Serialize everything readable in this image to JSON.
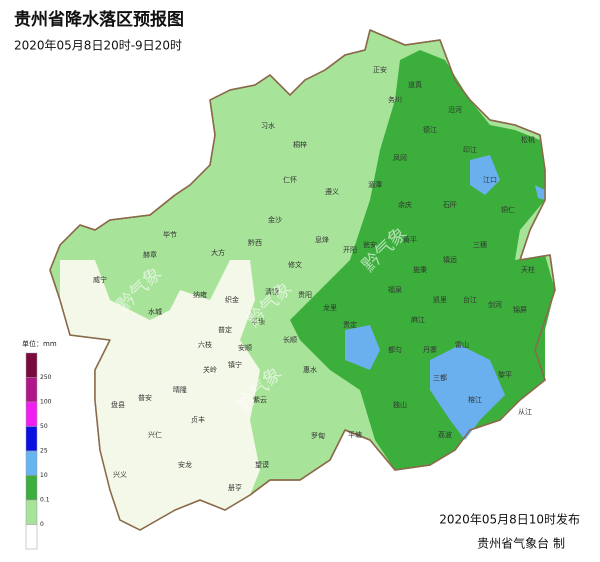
{
  "header": {
    "title": "贵州省降水落区预报图",
    "subtitle": "2020年05月8日20时-9日20时"
  },
  "legend": {
    "unit": "单位：mm",
    "labels": [
      "250",
      "100",
      "50",
      "25",
      "10",
      "0.1",
      "0"
    ]
  },
  "watermark": "黔气象",
  "cities": [
    "习水",
    "桐梓",
    "正安",
    "道真",
    "务川",
    "沿河",
    "德江",
    "松桃",
    "印江",
    "江口",
    "铜仁",
    "仁怀",
    "遵义",
    "湄潭",
    "凤冈",
    "余庆",
    "石阡",
    "金沙",
    "黔西",
    "大方",
    "赫章",
    "纳雍",
    "织金",
    "水城",
    "威宁",
    "毕节",
    "清镇",
    "贵阳",
    "平坝",
    "安顺",
    "镇宁",
    "普定",
    "六枝",
    "关岭",
    "晴隆",
    "普安",
    "盘县",
    "兴仁",
    "兴义",
    "安龙",
    "贞丰",
    "册亨",
    "望谟",
    "紫云",
    "长顺",
    "惠水",
    "罗甸",
    "平塘",
    "独山",
    "三都",
    "荔波",
    "都匀",
    "贵定",
    "龙里",
    "福泉",
    "麻江",
    "丹寨",
    "凯里",
    "雷山",
    "台江",
    "剑河",
    "镇远",
    "施秉",
    "黄平",
    "三穗",
    "天柱",
    "锦屏",
    "黎平",
    "榕江",
    "从江",
    "开阳",
    "息烽",
    "修文",
    "瓮安"
  ],
  "footer": {
    "issued": "2020年05月8日10时发布",
    "agency": "贵州省气象台 制"
  }
}
